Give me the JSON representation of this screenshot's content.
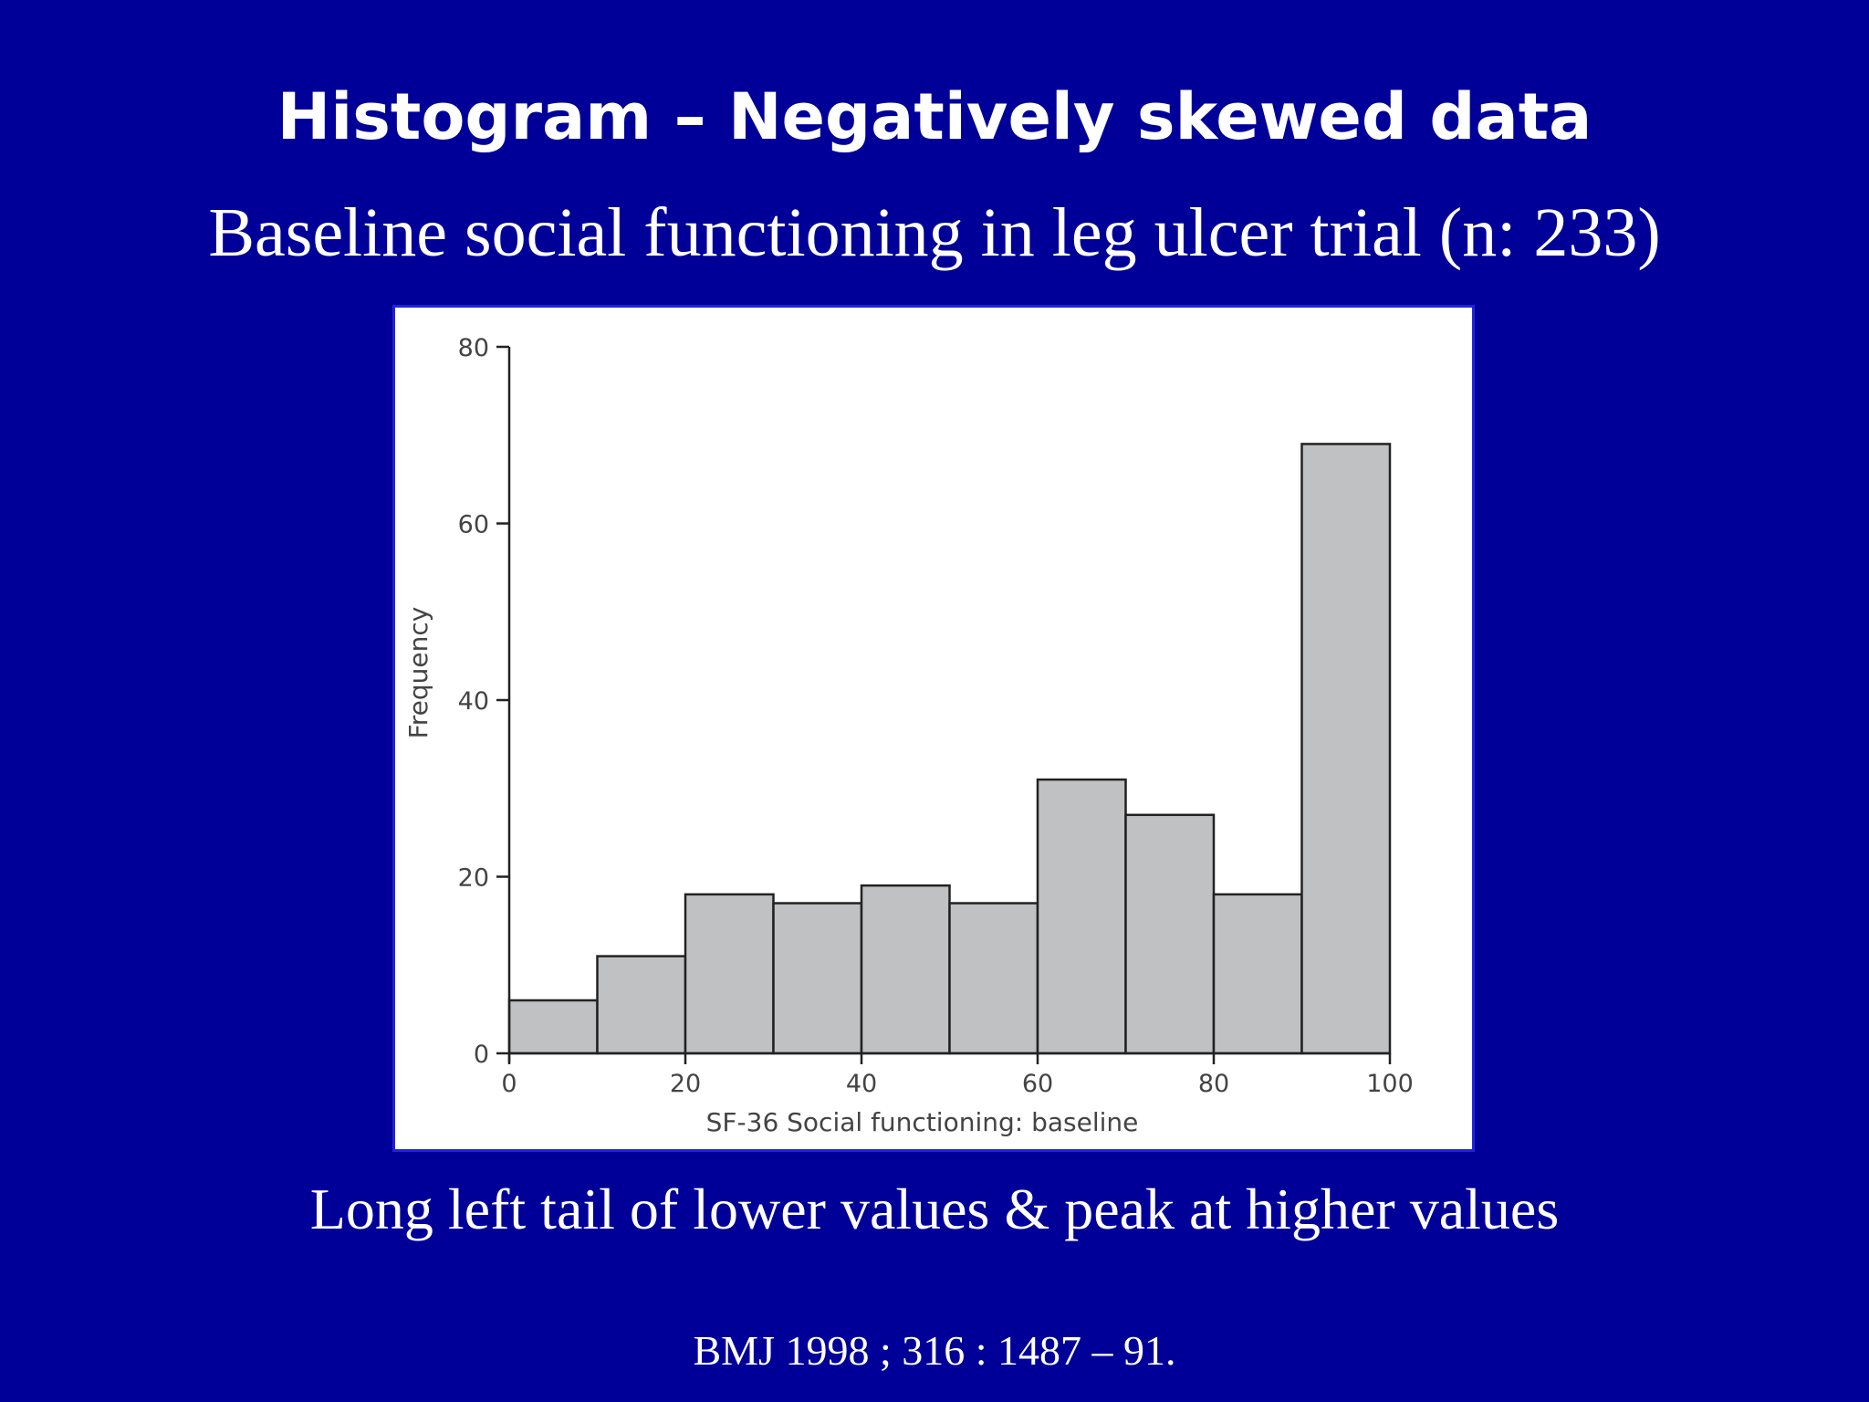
{
  "slide": {
    "title": "Histogram – Negatively skewed data",
    "subtitle": "Baseline social functioning in leg ulcer trial (n: 233)",
    "caption": "Long left tail of lower values & peak at higher values",
    "reference": "BMJ 1998 ; 316 : 1487 – 91.",
    "background_color": "#000099",
    "text_color": "#ffffff"
  },
  "chart_data": {
    "type": "bar",
    "subtype": "histogram",
    "xlabel": "SF-36 Social functioning: baseline",
    "ylabel": "Frequency",
    "bins": [
      {
        "start": 0,
        "end": 10,
        "count": 6
      },
      {
        "start": 10,
        "end": 20,
        "count": 11
      },
      {
        "start": 20,
        "end": 30,
        "count": 18
      },
      {
        "start": 30,
        "end": 40,
        "count": 17
      },
      {
        "start": 40,
        "end": 50,
        "count": 19
      },
      {
        "start": 50,
        "end": 60,
        "count": 17
      },
      {
        "start": 60,
        "end": 70,
        "count": 31
      },
      {
        "start": 70,
        "end": 80,
        "count": 27
      },
      {
        "start": 80,
        "end": 90,
        "count": 18
      },
      {
        "start": 90,
        "end": 100,
        "count": 69
      }
    ],
    "xlim": [
      0,
      100
    ],
    "ylim": [
      0,
      80
    ],
    "xticks": [
      "0",
      "20",
      "40",
      "60",
      "80",
      "100"
    ],
    "yticks": [
      "0",
      "20",
      "40",
      "60",
      "80"
    ],
    "grid": false,
    "bar_color": "#c0c1c3",
    "bar_edge_color": "#222222"
  }
}
